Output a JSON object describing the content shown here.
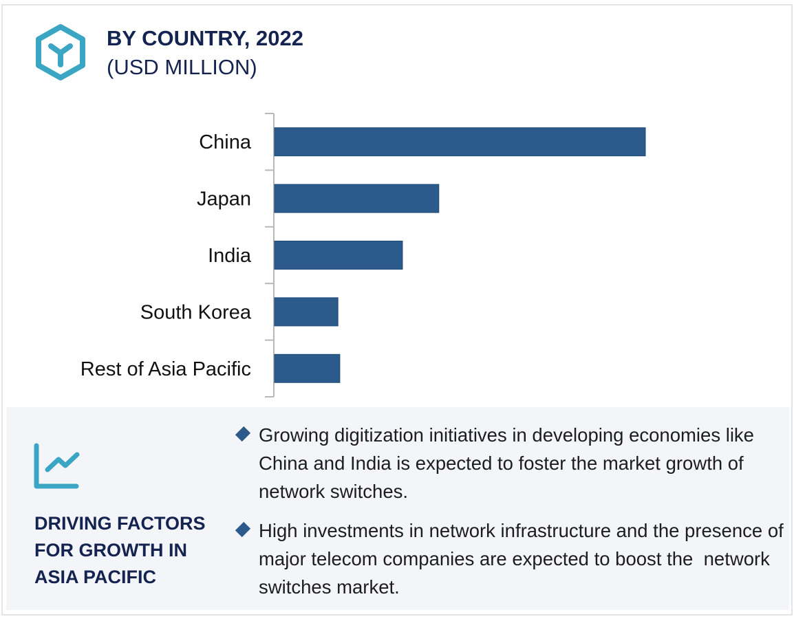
{
  "header": {
    "title": "BY COUNTRY, 2022",
    "subtitle": "(USD MILLION)",
    "icon": "hexagon-cube-icon"
  },
  "chart_data": {
    "type": "bar",
    "orientation": "horizontal",
    "title": "BY COUNTRY, 2022",
    "subtitle": "(USD MILLION)",
    "categories": [
      "China",
      "Japan",
      "India",
      "South Korea",
      "Rest of Asia Pacific"
    ],
    "values": [
      100,
      44.3,
      34.5,
      17.1,
      17.6
    ],
    "value_note": "relative index (China = 100); no value axis shown",
    "xlabel": "",
    "ylabel": "",
    "xlim": [
      0,
      100
    ],
    "grid": false,
    "legend": "none",
    "bar_color": "#2c5a8a",
    "axis_color": "#b8b8b8"
  },
  "drivers": {
    "heading": "DRIVING FACTORS FOR GROWTH IN ASIA PACIFIC",
    "icon": "trend-chart-icon",
    "items": [
      {
        "text": "Growing digitization initiatives in developing economies like China and India is expected to foster the market growth of network switches."
      },
      {
        "text": "High investments in network infrastructure and the presence of major telecom companies are expected to boost the  network switches market."
      }
    ]
  },
  "colors": {
    "accent": "#3ba6c4",
    "title": "#14234f",
    "bar": "#2c5a8a",
    "panel_bg": "#f3f5f9"
  }
}
